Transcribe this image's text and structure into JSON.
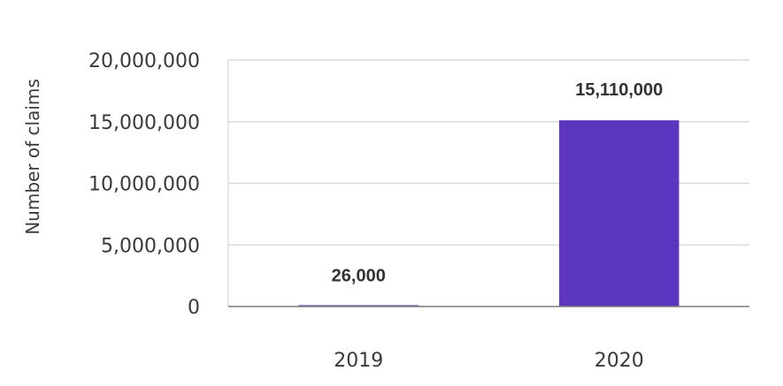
{
  "chart_data": {
    "type": "bar",
    "title": "",
    "xlabel": "",
    "ylabel": "Number of claims",
    "categories": [
      "2019",
      "2020"
    ],
    "values": [
      26000,
      15110000
    ],
    "data_labels": [
      "26,000",
      "15,110,000"
    ],
    "ylim": [
      0,
      20000000
    ],
    "yticks": [
      0,
      5000000,
      10000000,
      15000000,
      20000000
    ],
    "ytick_labels": [
      "0",
      "5,000,000",
      "10,000,000",
      "15,000,000",
      "20,000,000"
    ],
    "bar_color": "#5c35bf",
    "grid": true,
    "legend": "none"
  }
}
